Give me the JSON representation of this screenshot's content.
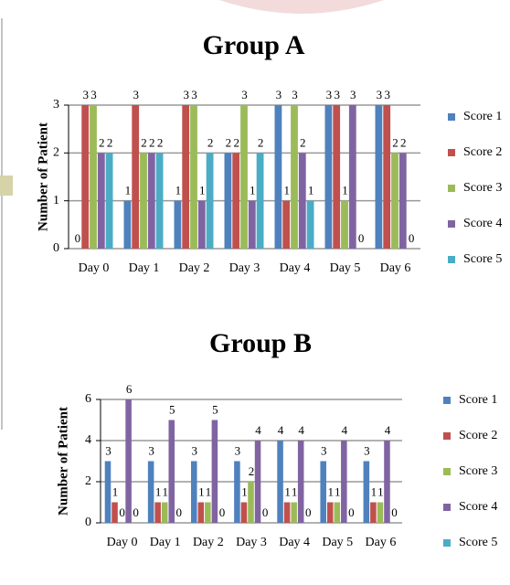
{
  "chart_data": [
    {
      "type": "bar",
      "title": "Group A",
      "y_label": "Number of Patient",
      "categories": [
        "Day 0",
        "Day 1",
        "Day 2",
        "Day 3",
        "Day 4",
        "Day 5",
        "Day 6"
      ],
      "series": [
        {
          "name": "Score 1",
          "color": "#4f81bd",
          "values": [
            0,
            1,
            1,
            2,
            3,
            3,
            3
          ]
        },
        {
          "name": "Score 2",
          "color": "#c0504d",
          "values": [
            3,
            3,
            3,
            2,
            1,
            3,
            3
          ]
        },
        {
          "name": "Score 3",
          "color": "#9bbb59",
          "values": [
            3,
            2,
            3,
            3,
            3,
            1,
            2
          ]
        },
        {
          "name": "Score 4",
          "color": "#8064a2",
          "values": [
            2,
            2,
            1,
            1,
            2,
            3,
            2
          ]
        },
        {
          "name": "Score 5",
          "color": "#4bacc6",
          "values": [
            2,
            2,
            2,
            2,
            1,
            0,
            0
          ]
        }
      ],
      "ylim": [
        0,
        3
      ],
      "yticks": [
        0,
        1,
        2,
        3
      ],
      "grid": true
    },
    {
      "type": "bar",
      "title": "Group B",
      "y_label": "Number of Patient",
      "categories": [
        "Day 0",
        "Day 1",
        "Day 2",
        "Day 3",
        "Day 4",
        "Day 5",
        "Day 6"
      ],
      "series": [
        {
          "name": "Score 1",
          "color": "#4f81bd",
          "values": [
            3,
            3,
            3,
            3,
            4,
            3,
            3
          ]
        },
        {
          "name": "Score 2",
          "color": "#c0504d",
          "values": [
            1,
            1,
            1,
            1,
            1,
            1,
            1
          ]
        },
        {
          "name": "Score 3",
          "color": "#9bbb59",
          "values": [
            0,
            1,
            1,
            2,
            1,
            1,
            1
          ]
        },
        {
          "name": "Score 4",
          "color": "#8064a2",
          "values": [
            6,
            5,
            5,
            4,
            4,
            4,
            4
          ]
        },
        {
          "name": "Score 5",
          "color": "#4bacc6",
          "values": [
            0,
            0,
            0,
            0,
            0,
            0,
            0
          ]
        }
      ],
      "ylim": [
        0,
        6
      ],
      "yticks": [
        0,
        2,
        4,
        6
      ],
      "grid": true
    }
  ]
}
